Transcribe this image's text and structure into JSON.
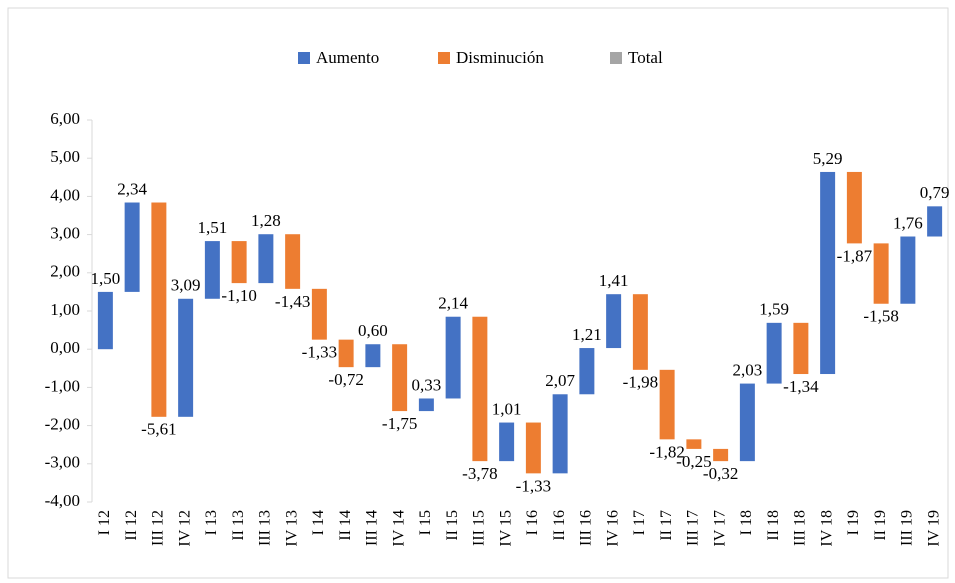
{
  "chart_data": {
    "type": "waterfall",
    "legend": [
      {
        "name": "Aumento",
        "color": "#4472c4"
      },
      {
        "name": "Disminución",
        "color": "#ed7d31"
      },
      {
        "name": "Total",
        "color": "#a5a5a5"
      }
    ],
    "categories": [
      "I 12",
      "II 12",
      "III 12",
      "IV 12",
      "I 13",
      "II 13",
      "III 13",
      "IV 13",
      "I 14",
      "II 14",
      "III 14",
      "IV 14",
      "I 15",
      "II 15",
      "III 15",
      "IV 15",
      "I 16",
      "II 16",
      "III 16",
      "IV 16",
      "I 17",
      "II 17",
      "III 17",
      "IV 17",
      "I 18",
      "II 18",
      "III 18",
      "IV 18",
      "I 19",
      "II 19",
      "III 19",
      "IV 19"
    ],
    "values": [
      1.5,
      2.34,
      -5.61,
      3.09,
      1.51,
      -1.1,
      1.28,
      -1.43,
      -1.33,
      -0.72,
      0.6,
      -1.75,
      0.33,
      2.14,
      -3.78,
      1.01,
      -1.33,
      2.07,
      1.21,
      1.41,
      -1.98,
      -1.82,
      -0.25,
      -0.32,
      2.03,
      1.59,
      -1.34,
      5.29,
      -1.87,
      -1.58,
      1.76,
      0.79
    ],
    "value_labels": [
      "1,50",
      "2,34",
      "-5,61",
      "3,09",
      "1,51",
      "-1,10",
      "1,28",
      "-1,43",
      "-1,33",
      "-0,72",
      "0,60",
      "-1,75",
      "0,33",
      "2,14",
      "-3,78",
      "1,01",
      "-1,33",
      "2,07",
      "1,21",
      "1,41",
      "-1,98",
      "-1,82",
      "-0,25",
      "-0,32",
      "2,03",
      "1,59",
      "-1,34",
      "5,29",
      "-1,87",
      "-1,58",
      "1,76",
      "0,79"
    ],
    "ylim": [
      -4,
      6
    ],
    "yticks": [
      {
        "value": -4,
        "label": "-4,00"
      },
      {
        "value": -3,
        "label": "-3,00"
      },
      {
        "value": -2,
        "label": "-2,00"
      },
      {
        "value": -1,
        "label": "-1,00"
      },
      {
        "value": 0,
        "label": "0,00"
      },
      {
        "value": 1,
        "label": "1,00"
      },
      {
        "value": 2,
        "label": "2,00"
      },
      {
        "value": 3,
        "label": "3,00"
      },
      {
        "value": 4,
        "label": "4,00"
      },
      {
        "value": 5,
        "label": "5,00"
      },
      {
        "value": 6,
        "label": "6,00"
      }
    ],
    "grid": false
  }
}
